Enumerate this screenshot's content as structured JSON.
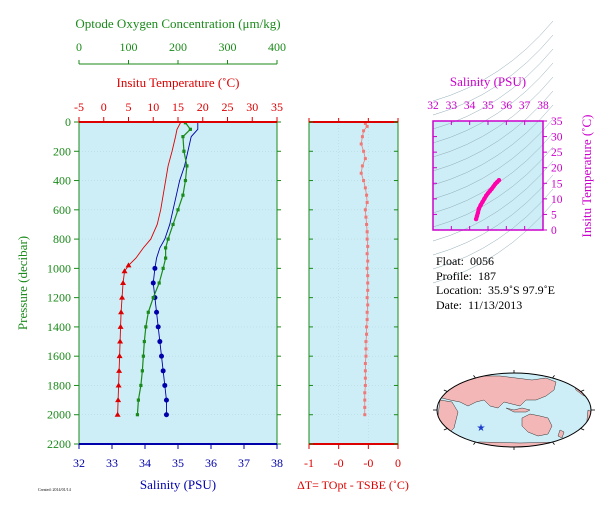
{
  "chart_data": [
    {
      "type": "line",
      "panel": "profiles",
      "axes": {
        "pressure": {
          "label": "Pressure (decibar)",
          "lim": [
            2200,
            0
          ],
          "ticks": [
            0,
            200,
            400,
            600,
            800,
            1000,
            1200,
            1400,
            1600,
            1800,
            2000,
            2200
          ],
          "color": "#1a8a1a"
        },
        "salinity": {
          "label": "Salinity (PSU)",
          "lim": [
            32,
            38
          ],
          "ticks": [
            32,
            33,
            34,
            35,
            36,
            37,
            38
          ],
          "color": "#0000aa"
        },
        "temperature": {
          "label": "Insitu Temperature (˚C)",
          "lim": [
            -5,
            35
          ],
          "ticks": [
            -5,
            0,
            5,
            10,
            15,
            20,
            25,
            30,
            35
          ],
          "color": "#dd0000"
        },
        "oxygen": {
          "label": "Optode Oxygen Concentration (μm/kg)",
          "lim": [
            0,
            400
          ],
          "ticks": [
            0,
            100,
            200,
            300,
            400
          ],
          "color": "#1a8a1a"
        }
      },
      "series": [
        {
          "axis": "temperature",
          "color": "#dd0000",
          "x": [
            15.5,
            14.8,
            14.5,
            13.8,
            13.0,
            12.5,
            12.0,
            11.5,
            10.8,
            9.5,
            8.0,
            6.5,
            5.0,
            4.2,
            3.9,
            3.7,
            3.5,
            3.4,
            3.3,
            3.2,
            3.1,
            3.0,
            2.9,
            2.8
          ],
          "y": [
            5,
            50,
            100,
            200,
            300,
            400,
            500,
            600,
            700,
            800,
            860,
            930,
            980,
            1020,
            1100,
            1200,
            1300,
            1400,
            1500,
            1600,
            1700,
            1800,
            1900,
            2000
          ]
        },
        {
          "axis": "salinity",
          "color": "#0000aa",
          "x": [
            35.6,
            35.6,
            35.4,
            35.3,
            35.2,
            35.05,
            34.95,
            34.85,
            34.75,
            34.6,
            34.45,
            34.35,
            34.3,
            34.25,
            34.3,
            34.35,
            34.4,
            34.45,
            34.5,
            34.55,
            34.6,
            34.65,
            34.65
          ],
          "y": [
            5,
            50,
            100,
            200,
            300,
            400,
            500,
            600,
            700,
            800,
            860,
            930,
            1000,
            1100,
            1200,
            1300,
            1400,
            1500,
            1600,
            1700,
            1800,
            1900,
            2000
          ]
        },
        {
          "axis": "oxygen",
          "color": "#1a8a1a",
          "x": [
            215,
            225,
            210,
            212,
            218,
            215,
            210,
            200,
            190,
            180,
            175,
            175,
            170,
            162,
            150,
            140,
            135,
            132,
            130,
            128,
            125,
            120,
            118
          ],
          "y": [
            5,
            50,
            100,
            200,
            300,
            400,
            500,
            600,
            700,
            800,
            860,
            930,
            1000,
            1100,
            1200,
            1300,
            1400,
            1500,
            1600,
            1700,
            1800,
            1900,
            2000
          ]
        }
      ]
    },
    {
      "type": "scatter",
      "panel": "delta-temperature",
      "xlabel": "ΔT= TOpt - TSBE (˚C)",
      "xlim": [
        -1,
        0.5
      ],
      "xticks": [
        -1,
        -0.5,
        0,
        0.5
      ],
      "xtick_labels": [
        "-1",
        "-0",
        "-0",
        "0"
      ],
      "ylim": [
        2200,
        0
      ],
      "color": "#f07878",
      "x": [
        -0.05,
        -0.02,
        -0.08,
        -0.1,
        -0.12,
        -0.08,
        -0.05,
        -0.1,
        -0.12,
        -0.08,
        -0.05,
        -0.03,
        -0.02,
        -0.05,
        -0.04,
        -0.03,
        -0.02,
        -0.02,
        -0.01,
        -0.02,
        -0.01,
        -0.02,
        -0.01,
        -0.01,
        -0.01,
        -0.02,
        -0.01,
        -0.02,
        -0.02,
        -0.03,
        -0.03,
        -0.04,
        -0.04,
        -0.04,
        -0.05,
        -0.05,
        -0.05,
        -0.05,
        -0.06,
        -0.06,
        -0.06,
        -0.06
      ],
      "y": [
        10,
        30,
        60,
        100,
        150,
        200,
        250,
        300,
        350,
        400,
        450,
        500,
        550,
        600,
        650,
        700,
        750,
        800,
        850,
        900,
        950,
        1000,
        1050,
        1100,
        1150,
        1200,
        1250,
        1300,
        1350,
        1400,
        1450,
        1500,
        1550,
        1600,
        1650,
        1700,
        1750,
        1800,
        1850,
        1900,
        1950,
        2000
      ]
    },
    {
      "type": "scatter",
      "panel": "ts-diagram",
      "title": "Salinity (PSU)",
      "xlabel": "Salinity (PSU)",
      "ylabel": "Insitu Temperature (˚C)",
      "xlim": [
        32,
        38
      ],
      "xticks": [
        32,
        33,
        34,
        35,
        36,
        37,
        38
      ],
      "ylim": [
        0,
        35
      ],
      "yticks": [
        0,
        5,
        10,
        15,
        20,
        25,
        30,
        35
      ],
      "color": "#ff00aa",
      "x": [
        34.35,
        34.4,
        34.45,
        34.5,
        34.6,
        34.7,
        34.8,
        34.9,
        35.0,
        35.1,
        35.2,
        35.3,
        35.4,
        35.5,
        35.6
      ],
      "y": [
        3.5,
        4.5,
        5.5,
        6.8,
        8.0,
        9.0,
        10.0,
        11.0,
        11.8,
        12.5,
        13.2,
        14.0,
        14.8,
        15.4,
        16.0
      ]
    }
  ],
  "float_info": {
    "float_label": "Float:",
    "float_value": "0056",
    "profile_label": "Profile:",
    "profile_value": "187",
    "location_label": "Location:",
    "location_value": "35.9˚S  97.9˚E",
    "date_label": "Date:",
    "date_value": "11/13/2013"
  },
  "footnote": "Created: 2014/01/14",
  "map": {
    "marker_lon": 97.9,
    "marker_lat": -35.9,
    "marker_color": "#1a3ccf"
  }
}
